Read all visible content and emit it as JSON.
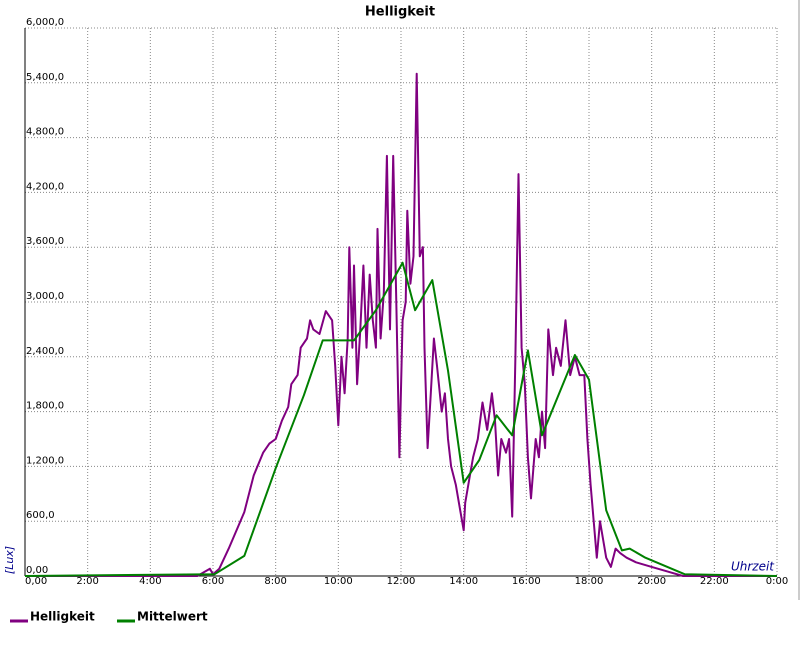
{
  "chart_data": {
    "type": "line",
    "title": "Helligkeit",
    "ylabel": "[Lux]",
    "xlabel": "Uhrzeit",
    "xlim": [
      0,
      24
    ],
    "ylim": [
      0,
      6000
    ],
    "grid": true,
    "legend": "bottom",
    "xticks": [
      {
        "value": 0,
        "label": "0,00"
      },
      {
        "value": 2,
        "label": "2:00"
      },
      {
        "value": 4,
        "label": "4:00"
      },
      {
        "value": 6,
        "label": "6:00"
      },
      {
        "value": 8,
        "label": "8:00"
      },
      {
        "value": 10,
        "label": "10:00"
      },
      {
        "value": 12,
        "label": "12:00"
      },
      {
        "value": 14,
        "label": "14:00"
      },
      {
        "value": 16,
        "label": "16:00"
      },
      {
        "value": 18,
        "label": "18:00"
      },
      {
        "value": 20,
        "label": "20:00"
      },
      {
        "value": 22,
        "label": "22:00"
      },
      {
        "value": 24,
        "label": "0:00"
      }
    ],
    "yticks": [
      {
        "value": 0,
        "label": "0,00"
      },
      {
        "value": 600,
        "label": "600,0"
      },
      {
        "value": 1200,
        "label": "1,200,0"
      },
      {
        "value": 1800,
        "label": "1,800,0"
      },
      {
        "value": 2400,
        "label": "2,400,0"
      },
      {
        "value": 3000,
        "label": "3,000,0"
      },
      {
        "value": 3600,
        "label": "3,600,0"
      },
      {
        "value": 4200,
        "label": "4,200,0"
      },
      {
        "value": 4800,
        "label": "4,800,0"
      },
      {
        "value": 5400,
        "label": "5,400,0"
      },
      {
        "value": 6000,
        "label": "6,000,0"
      }
    ],
    "series": [
      {
        "name": "Helligkeit",
        "color": "#800080",
        "x": [
          0,
          5.5,
          5.9,
          6.0,
          6.2,
          6.5,
          7.0,
          7.3,
          7.6,
          7.8,
          8.0,
          8.2,
          8.4,
          8.5,
          8.7,
          8.8,
          9.0,
          9.1,
          9.2,
          9.4,
          9.6,
          9.8,
          9.9,
          10.0,
          10.1,
          10.2,
          10.3,
          10.35,
          10.45,
          10.5,
          10.6,
          10.7,
          10.8,
          10.9,
          11.0,
          11.1,
          11.2,
          11.25,
          11.35,
          11.45,
          11.55,
          11.65,
          11.75,
          11.85,
          11.95,
          12.05,
          12.15,
          12.2,
          12.3,
          12.4,
          12.5,
          12.6,
          12.7,
          12.75,
          12.85,
          12.95,
          13.05,
          13.15,
          13.3,
          13.4,
          13.5,
          13.6,
          13.75,
          13.9,
          14.0,
          14.05,
          14.2,
          14.3,
          14.45,
          14.6,
          14.75,
          14.9,
          15.0,
          15.1,
          15.2,
          15.35,
          15.45,
          15.55,
          15.65,
          15.75,
          15.85,
          15.95,
          16.05,
          16.15,
          16.3,
          16.4,
          16.5,
          16.6,
          16.7,
          16.85,
          16.95,
          17.1,
          17.25,
          17.4,
          17.55,
          17.7,
          17.85,
          17.95,
          18.05,
          18.15,
          18.25,
          18.35,
          18.45,
          18.55,
          18.7,
          18.85,
          19.0,
          19.2,
          19.5,
          20.0,
          20.5,
          21.0,
          24
        ],
        "values": [
          0,
          0,
          80,
          20,
          80,
          300,
          700,
          1100,
          1350,
          1450,
          1500,
          1700,
          1850,
          2100,
          2200,
          2500,
          2600,
          2800,
          2700,
          2650,
          2900,
          2800,
          2300,
          1650,
          2400,
          2000,
          2600,
          3600,
          2500,
          3400,
          2100,
          2700,
          3400,
          2500,
          3300,
          2800,
          2500,
          3800,
          2600,
          3100,
          4600,
          2700,
          4600,
          3000,
          1300,
          2800,
          3000,
          4000,
          3200,
          3500,
          5500,
          3500,
          3600,
          2500,
          1400,
          2000,
          2600,
          2300,
          1800,
          2000,
          1500,
          1200,
          1000,
          700,
          500,
          800,
          1100,
          1300,
          1500,
          1900,
          1600,
          2000,
          1700,
          1100,
          1500,
          1350,
          1500,
          650,
          2400,
          4400,
          2500,
          2100,
          1300,
          850,
          1500,
          1300,
          1800,
          1400,
          2700,
          2200,
          2500,
          2300,
          2800,
          2200,
          2400,
          2200,
          2200,
          1500,
          1000,
          600,
          200,
          600,
          400,
          200,
          100,
          300,
          250,
          200,
          150,
          100,
          50,
          0,
          0
        ]
      },
      {
        "name": "Mittelwert",
        "color": "#008000",
        "x": [
          0,
          6.05,
          7.0,
          8.0,
          8.9,
          9.5,
          10.5,
          11.2,
          12.05,
          12.45,
          13.0,
          13.5,
          14.0,
          14.5,
          15.05,
          15.55,
          16.05,
          16.5,
          17.55,
          18.0,
          18.55,
          19.05,
          19.3,
          19.8,
          21.05,
          24
        ],
        "values": [
          0,
          20,
          220,
          1180,
          1980,
          2580,
          2580,
          2910,
          3430,
          2910,
          3240,
          2250,
          1020,
          1270,
          1760,
          1540,
          2470,
          1540,
          2420,
          2150,
          720,
          280,
          300,
          200,
          20,
          0
        ]
      }
    ]
  }
}
